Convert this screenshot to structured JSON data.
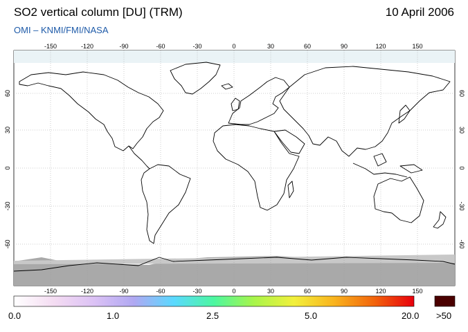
{
  "header": {
    "title": "SO2 vertical column [DU] (TRM)",
    "date": "10 April 2006",
    "credit": "OMI  –  KNMI/FMI/NASA"
  },
  "map": {
    "lon_ticks": [
      "-150",
      "-120",
      "-90",
      "-60",
      "-30",
      "0",
      "30",
      "60",
      "90",
      "120",
      "150"
    ],
    "lat_ticks": [
      "60",
      "30",
      "0",
      "-30",
      "-60"
    ],
    "land_color": "#ffffff",
    "no_data_color": "#a9a9a9",
    "coastline_color": "#000000"
  },
  "colorbar": {
    "labels": [
      "0.0",
      "1.0",
      "2.5",
      "5.0",
      "20.0"
    ],
    "overflow_label": ">50",
    "overflow_color": "#4a0000",
    "colors": [
      "#ffffff",
      "#f4dcf2",
      "#dcc2f5",
      "#b0a8f2",
      "#5ad9ff",
      "#4cf7a0",
      "#a8f54a",
      "#f2f03c",
      "#f9b41e",
      "#f2650c",
      "#e8000c"
    ]
  }
}
